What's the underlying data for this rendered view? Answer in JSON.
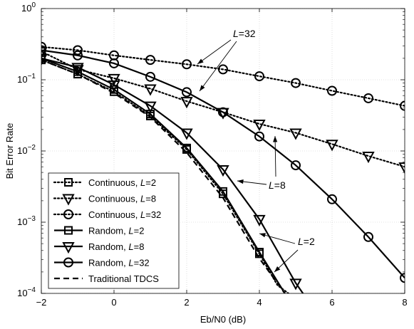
{
  "chart_data": {
    "type": "line",
    "title": "",
    "xlabel": "Eb/N0 (dB)",
    "ylabel": "Bit Error Rate",
    "xlim": [
      -2,
      8
    ],
    "ylim": [
      0.0001,
      1
    ],
    "yscale": "log",
    "grid": true,
    "legend_position": "bottom-left",
    "x_ticks": [
      "-2",
      "0",
      "2",
      "4",
      "6",
      "8"
    ],
    "y_ticks": [
      {
        "base": "10",
        "exp": "0"
      },
      {
        "base": "10",
        "exp": "-1"
      },
      {
        "base": "10",
        "exp": "-2"
      },
      {
        "base": "10",
        "exp": "-3"
      },
      {
        "base": "10",
        "exp": "-4"
      }
    ],
    "series": [
      {
        "name_prefix": "Continuous, ",
        "name_var": "L",
        "name_suffix": "=2",
        "style": "dotted",
        "marker": "square",
        "x": [
          -2,
          -1,
          0,
          1,
          2,
          3,
          4,
          4.5,
          4.8
        ],
        "y": [
          0.19,
          0.12,
          0.068,
          0.031,
          0.0105,
          0.0025,
          0.00036,
          0.00013,
          0.0001
        ]
      },
      {
        "name_prefix": "Continuous, ",
        "name_var": "L",
        "name_suffix": "=8",
        "style": "dotted",
        "marker": "triangle",
        "x": [
          -2,
          -1,
          0,
          1,
          2,
          3,
          4,
          5,
          6,
          7,
          8
        ],
        "y": [
          0.25,
          0.14,
          0.105,
          0.075,
          0.05,
          0.035,
          0.024,
          0.018,
          0.0125,
          0.0085,
          0.006
        ]
      },
      {
        "name_prefix": "Continuous, ",
        "name_var": "L",
        "name_suffix": "=32",
        "style": "dotted",
        "marker": "circle",
        "x": [
          -2,
          -1,
          0,
          1,
          2,
          3,
          4,
          5,
          6,
          7,
          8
        ],
        "y": [
          0.29,
          0.26,
          0.22,
          0.19,
          0.165,
          0.14,
          0.112,
          0.09,
          0.07,
          0.055,
          0.043
        ]
      },
      {
        "name_prefix": "Random, ",
        "name_var": "L",
        "name_suffix": "=2",
        "style": "solid",
        "marker": "square",
        "x": [
          -2,
          -1,
          0,
          1,
          2,
          3,
          4,
          4.7
        ],
        "y": [
          0.2,
          0.13,
          0.073,
          0.033,
          0.011,
          0.0027,
          0.00038,
          0.0001
        ]
      },
      {
        "name_prefix": "Random, ",
        "name_var": "L",
        "name_suffix": "=8",
        "style": "solid",
        "marker": "triangle",
        "x": [
          -2,
          -1,
          0,
          1,
          2,
          3,
          4,
          5,
          5.2
        ],
        "y": [
          0.2,
          0.15,
          0.085,
          0.043,
          0.018,
          0.0055,
          0.0011,
          0.00014,
          0.0001
        ]
      },
      {
        "name_prefix": "Random, ",
        "name_var": "L",
        "name_suffix": "=32",
        "style": "solid",
        "marker": "circle",
        "x": [
          -2,
          -1,
          0,
          1,
          2,
          3,
          4,
          5,
          6,
          7,
          8
        ],
        "y": [
          0.26,
          0.22,
          0.17,
          0.11,
          0.067,
          0.035,
          0.016,
          0.0063,
          0.0021,
          0.00062,
          0.000165
        ]
      },
      {
        "name_prefix": "Traditional TDCS",
        "name_var": "",
        "name_suffix": "",
        "style": "dashed",
        "marker": "none",
        "x": [
          -2,
          -1,
          0,
          1,
          2,
          3,
          4,
          4.7
        ],
        "y": [
          0.19,
          0.12,
          0.065,
          0.03,
          0.0095,
          0.0022,
          0.00031,
          0.0001
        ]
      }
    ],
    "annotations": [
      {
        "var": "L",
        "text": "=32"
      },
      {
        "var": "L",
        "text": "=8"
      },
      {
        "var": "L",
        "text": "=2"
      }
    ]
  }
}
